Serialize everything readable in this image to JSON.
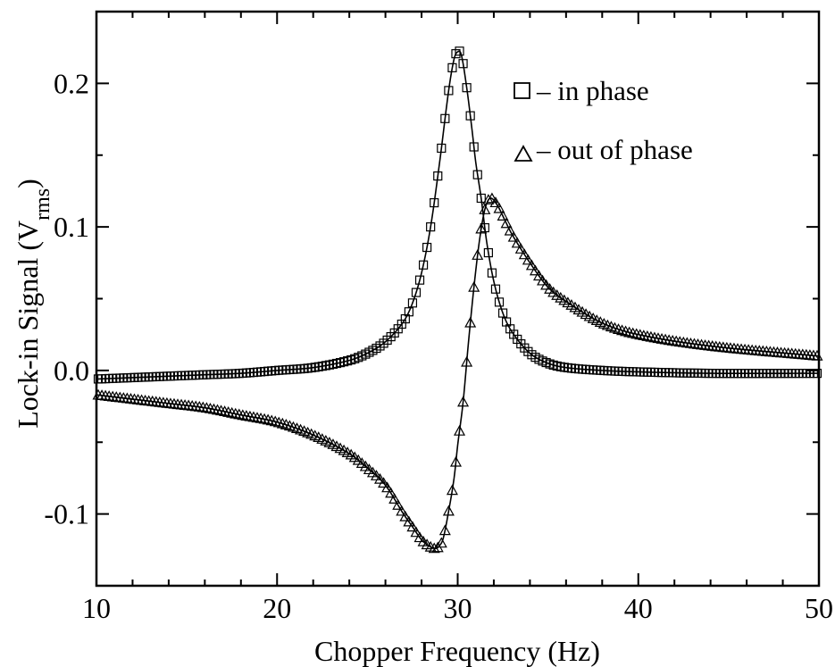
{
  "chart_data": {
    "type": "scatter",
    "title": "",
    "xlabel": "Chopper Frequency (Hz)",
    "ylabel": {
      "prefix": "Lock-in Signal (V",
      "subscript": "rms",
      "suffix": ")"
    },
    "xlim": [
      10,
      50
    ],
    "ylim": [
      -0.15,
      0.25
    ],
    "xticks": [
      10,
      20,
      30,
      40,
      50
    ],
    "xtick_labels": [
      "10",
      "20",
      "30",
      "40",
      "50"
    ],
    "yticks": [
      -0.1,
      0.0,
      0.1,
      0.2
    ],
    "ytick_labels": [
      "-0.1",
      "0.0",
      "0.1",
      "0.2"
    ],
    "grid": false,
    "legend_position": "top-right",
    "series": [
      {
        "name": "– in phase",
        "marker": "square",
        "fit_line": true,
        "x": [
          10.0,
          12.0,
          14.0,
          16.0,
          18.0,
          20.0,
          22.0,
          24.0,
          25.0,
          26.0,
          27.0,
          27.5,
          28.0,
          28.5,
          29.0,
          29.5,
          29.8,
          30.0,
          30.2,
          30.5,
          30.8,
          31.0,
          31.3,
          31.6,
          32.0,
          32.5,
          33.0,
          34.0,
          35.0,
          36.0,
          38.0,
          40.0,
          44.0,
          50.0
        ],
        "y": [
          -0.006,
          -0.005,
          -0.004,
          -0.003,
          -0.002,
          0.0,
          0.002,
          0.007,
          0.012,
          0.02,
          0.034,
          0.047,
          0.068,
          0.1,
          0.145,
          0.195,
          0.217,
          0.222,
          0.22,
          0.197,
          0.167,
          0.145,
          0.12,
          0.09,
          0.062,
          0.04,
          0.027,
          0.012,
          0.005,
          0.002,
          0.0,
          -0.001,
          -0.002,
          -0.002
        ]
      },
      {
        "name": "– out of phase",
        "marker": "triangle",
        "fit_line": true,
        "x": [
          10.0,
          12.0,
          14.0,
          16.0,
          18.0,
          20.0,
          22.0,
          24.0,
          25.0,
          26.0,
          27.0,
          27.5,
          28.0,
          28.5,
          28.8,
          29.0,
          29.2,
          29.5,
          29.8,
          30.0,
          30.3,
          30.6,
          30.9,
          31.2,
          31.5,
          31.8,
          32.2,
          32.6,
          33.0,
          34.0,
          35.0,
          36.0,
          38.0,
          40.0,
          44.0,
          50.0
        ],
        "y": [
          -0.017,
          -0.02,
          -0.023,
          -0.026,
          -0.031,
          -0.036,
          -0.045,
          -0.058,
          -0.068,
          -0.08,
          -0.1,
          -0.109,
          -0.118,
          -0.123,
          -0.124,
          -0.122,
          -0.117,
          -0.098,
          -0.075,
          -0.052,
          -0.022,
          0.02,
          0.058,
          0.09,
          0.112,
          0.12,
          0.115,
          0.105,
          0.095,
          0.075,
          0.058,
          0.048,
          0.033,
          0.025,
          0.017,
          0.01
        ]
      }
    ]
  }
}
